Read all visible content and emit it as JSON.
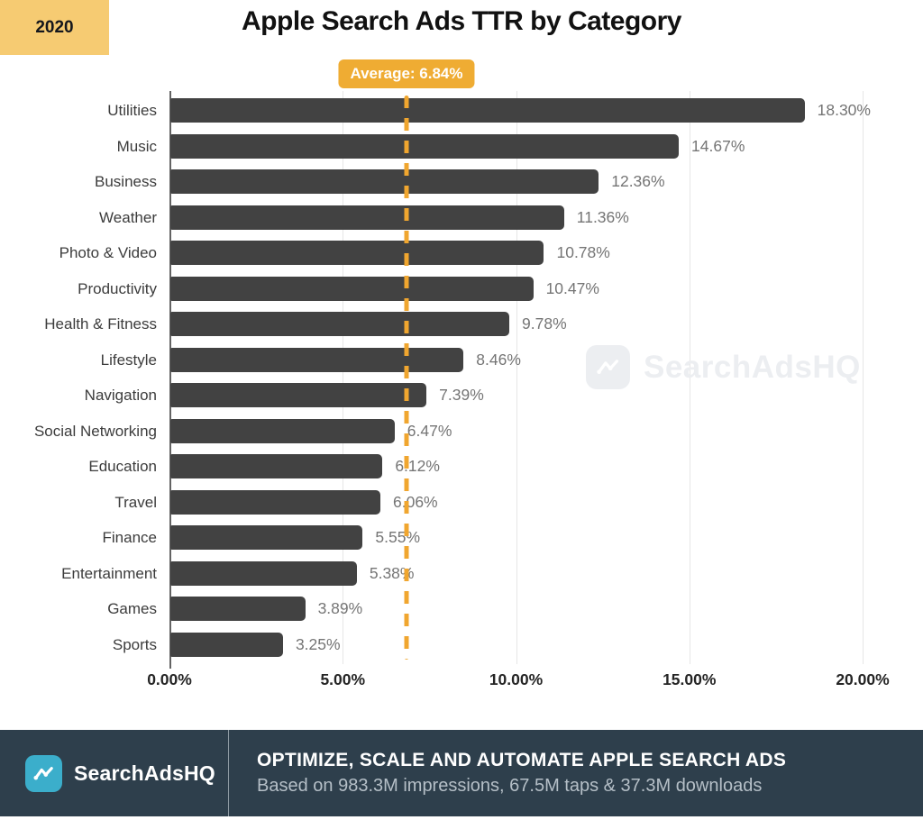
{
  "header": {
    "year_badge": "2020",
    "title": "Apple Search Ads TTR by Category"
  },
  "average_badge_label": "Average: 6.84%",
  "watermark": {
    "text": "SearchAdsHQ",
    "icon": "line-chart-icon"
  },
  "chart_data": {
    "type": "bar",
    "orientation": "horizontal",
    "title": "Apple Search Ads TTR by Category",
    "categories": [
      "Utilities",
      "Music",
      "Business",
      "Weather",
      "Photo & Video",
      "Productivity",
      "Health & Fitness",
      "Lifestyle",
      "Navigation",
      "Social Networking",
      "Education",
      "Travel",
      "Finance",
      "Entertainment",
      "Games",
      "Sports"
    ],
    "values": [
      18.3,
      14.67,
      12.36,
      11.36,
      10.78,
      10.47,
      9.78,
      8.46,
      7.39,
      6.47,
      6.12,
      6.06,
      5.55,
      5.38,
      3.89,
      3.25
    ],
    "value_labels": [
      "18.30%",
      "14.67%",
      "12.36%",
      "11.36%",
      "10.78%",
      "10.47%",
      "9.78%",
      "8.46%",
      "7.39%",
      "6.47%",
      "6.12%",
      "6.06%",
      "5.55%",
      "5.38%",
      "3.89%",
      "3.25%"
    ],
    "average": 6.84,
    "xlim": [
      0,
      20
    ],
    "x_tick_values": [
      0,
      5,
      10,
      15,
      20
    ],
    "x_tick_labels": [
      "0.00%",
      "5.00%",
      "10.00%",
      "15.00%",
      "20.00%"
    ],
    "grid": true,
    "legend_position": "none",
    "bar_color": "#424242",
    "average_line_color": "#F0A62F"
  },
  "footer": {
    "brand": "SearchAdsHQ",
    "logo_icon": "line-chart-icon",
    "headline": "OPTIMIZE, SCALE AND AUTOMATE APPLE SEARCH ADS",
    "subline": "Based on 983.3M impressions, 67.5M taps & 37.3M downloads"
  }
}
